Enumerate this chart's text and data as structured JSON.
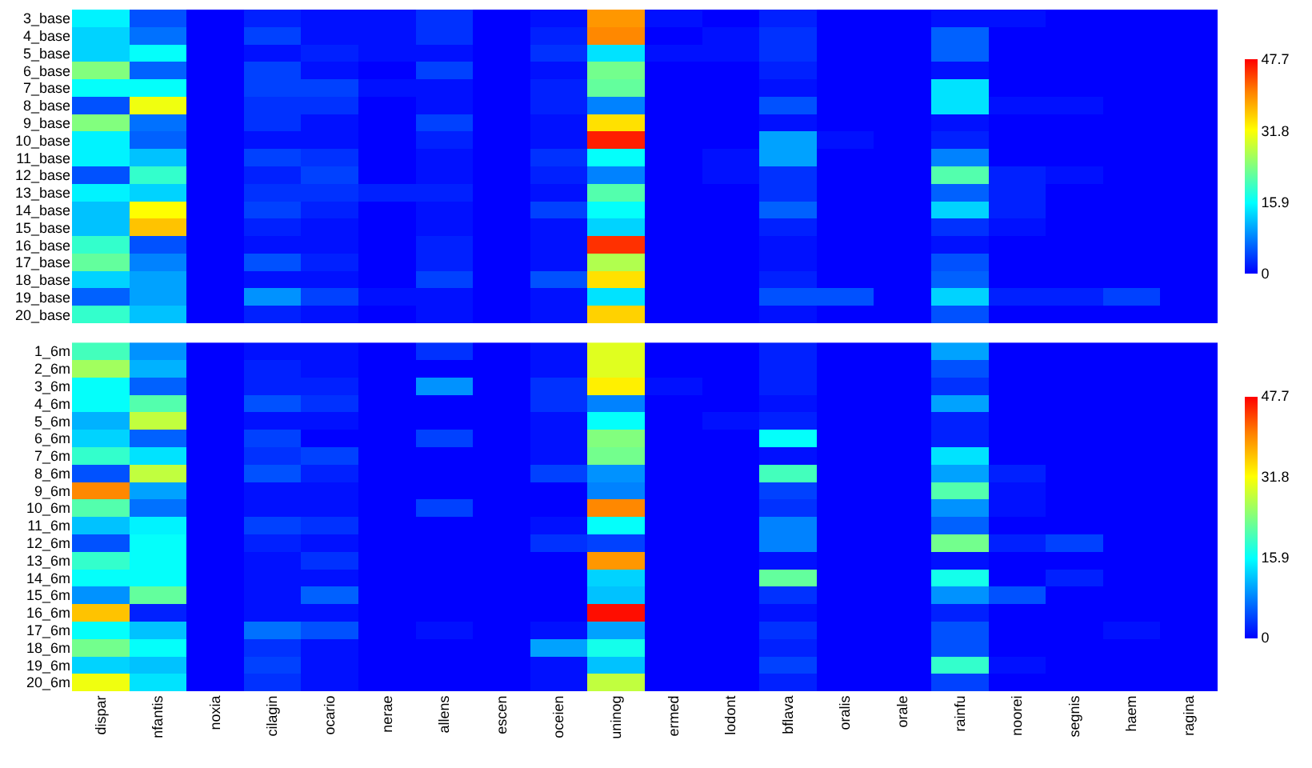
{
  "chart_data": [
    {
      "type": "heatmap",
      "tick_labels": "y",
      "categories": [
        null,
        null,
        null,
        null,
        null,
        null,
        null,
        null,
        null,
        null,
        null,
        null,
        null,
        null,
        null,
        null,
        null,
        null,
        null,
        null
      ],
      "y_categories": [
        "3_base",
        "4_base",
        "5_base",
        "6_base",
        "7_base",
        "8_base",
        "9_base",
        "10_base",
        "11_base",
        "12_base",
        "13_base",
        "14_base",
        "15_base",
        "16_base",
        "17_base",
        "18_base",
        "19_base",
        "20_base"
      ],
      "cells": [
        [
          15,
          5,
          0,
          2,
          1,
          1,
          3,
          0,
          1,
          39,
          1,
          0,
          2,
          0,
          0,
          1,
          1,
          0,
          0,
          0
        ],
        [
          13,
          7,
          0,
          4,
          1,
          1,
          3,
          0,
          2,
          40,
          0,
          1,
          3,
          0,
          0,
          6,
          0,
          0,
          0,
          0
        ],
        [
          13,
          16,
          0,
          1,
          2,
          1,
          1,
          0,
          3,
          14,
          1,
          1,
          3,
          0,
          0,
          6,
          0,
          0,
          0,
          0
        ],
        [
          24,
          6,
          0,
          4,
          1,
          0,
          4,
          0,
          1,
          23,
          0,
          0,
          2,
          0,
          0,
          1,
          0,
          0,
          0,
          0
        ],
        [
          16,
          16,
          0,
          4,
          4,
          1,
          1,
          0,
          2,
          22,
          0,
          0,
          1,
          0,
          0,
          14,
          0,
          0,
          0,
          0
        ],
        [
          5,
          31,
          0,
          3,
          3,
          0,
          1,
          0,
          2,
          8,
          0,
          0,
          5,
          0,
          0,
          14,
          1,
          1,
          0,
          0
        ],
        [
          24,
          7,
          0,
          3,
          1,
          0,
          4,
          0,
          1,
          34,
          0,
          0,
          1,
          0,
          0,
          1,
          0,
          0,
          0,
          0
        ],
        [
          15,
          6,
          0,
          1,
          1,
          0,
          2,
          0,
          1,
          46,
          0,
          0,
          10,
          1,
          0,
          2,
          0,
          0,
          0,
          0
        ],
        [
          15,
          12,
          0,
          4,
          3,
          0,
          1,
          0,
          3,
          16,
          0,
          1,
          10,
          0,
          0,
          8,
          0,
          0,
          0,
          0
        ],
        [
          5,
          19,
          0,
          2,
          4,
          0,
          1,
          0,
          2,
          8,
          0,
          1,
          3,
          0,
          0,
          21,
          2,
          1,
          0,
          0
        ],
        [
          15,
          13,
          0,
          3,
          3,
          2,
          2,
          0,
          1,
          21,
          0,
          0,
          3,
          0,
          0,
          6,
          2,
          0,
          0,
          0
        ],
        [
          12,
          32,
          0,
          4,
          2,
          0,
          1,
          0,
          4,
          16,
          0,
          0,
          6,
          0,
          0,
          13,
          2,
          0,
          0,
          0
        ],
        [
          12,
          36,
          0,
          2,
          1,
          0,
          1,
          0,
          1,
          13,
          0,
          0,
          2,
          0,
          0,
          3,
          1,
          0,
          0,
          0
        ],
        [
          19,
          5,
          0,
          1,
          1,
          0,
          2,
          0,
          1,
          45,
          0,
          0,
          1,
          0,
          0,
          1,
          0,
          0,
          0,
          0
        ],
        [
          22,
          8,
          0,
          5,
          2,
          0,
          2,
          0,
          1,
          27,
          0,
          0,
          1,
          0,
          0,
          5,
          0,
          0,
          0,
          0
        ],
        [
          13,
          10,
          0,
          1,
          1,
          0,
          4,
          0,
          5,
          34,
          0,
          0,
          2,
          0,
          0,
          6,
          0,
          0,
          0,
          0
        ],
        [
          6,
          10,
          0,
          9,
          4,
          1,
          1,
          0,
          1,
          14,
          0,
          0,
          5,
          5,
          0,
          13,
          2,
          2,
          4,
          0
        ],
        [
          19,
          12,
          0,
          2,
          1,
          0,
          1,
          0,
          1,
          35,
          0,
          0,
          1,
          0,
          0,
          5,
          0,
          0,
          0,
          0
        ]
      ],
      "clim": [
        0,
        47.7
      ],
      "cticks": [
        0,
        15.9,
        31.8,
        47.7
      ]
    },
    {
      "type": "heatmap",
      "categories": [
        "dispar",
        "nfantis",
        "noxia",
        "cilagin",
        "ocario",
        "nerae",
        "allens",
        "escen",
        "oceien",
        "uninog",
        "ermed",
        "lodont",
        "bflava",
        "oralis",
        "orale",
        "rainfu",
        "noorei",
        "segnis",
        "haem",
        "ragina"
      ],
      "y_categories": [
        "1_6m",
        "2_6m",
        "3_6m",
        "4_6m",
        "5_6m",
        "6_6m",
        "7_6m",
        "8_6m",
        "9_6m",
        "10_6m",
        "11_6m",
        "12_6m",
        "13_6m",
        "14_6m",
        "15_6m",
        "16_6m",
        "17_6m",
        "18_6m",
        "19_6m",
        "20_6m"
      ],
      "cells": [
        [
          20,
          9,
          0,
          1,
          1,
          0,
          3,
          0,
          1,
          30,
          0,
          0,
          2,
          0,
          0,
          10,
          0,
          0,
          0,
          0
        ],
        [
          26,
          11,
          0,
          2,
          1,
          0,
          0,
          0,
          1,
          30,
          0,
          0,
          2,
          0,
          0,
          5,
          0,
          0,
          0,
          0
        ],
        [
          16,
          6,
          0,
          2,
          2,
          0,
          9,
          0,
          3,
          33,
          1,
          0,
          2,
          0,
          0,
          3,
          0,
          0,
          0,
          0
        ],
        [
          16,
          21,
          0,
          5,
          3,
          0,
          0,
          0,
          3,
          8,
          0,
          0,
          1,
          0,
          0,
          10,
          0,
          0,
          0,
          0
        ],
        [
          11,
          28,
          0,
          1,
          1,
          0,
          0,
          0,
          1,
          16,
          0,
          1,
          2,
          0,
          0,
          2,
          0,
          0,
          0,
          0
        ],
        [
          13,
          6,
          0,
          4,
          0,
          0,
          4,
          0,
          1,
          24,
          0,
          0,
          16,
          0,
          0,
          2,
          0,
          0,
          0,
          0
        ],
        [
          19,
          14,
          0,
          3,
          4,
          0,
          0,
          0,
          1,
          23,
          0,
          0,
          1,
          0,
          0,
          14,
          0,
          0,
          0,
          0
        ],
        [
          5,
          28,
          0,
          5,
          2,
          0,
          0,
          0,
          4,
          9,
          0,
          0,
          20,
          0,
          0,
          10,
          2,
          0,
          0,
          0
        ],
        [
          40,
          10,
          0,
          1,
          1,
          0,
          0,
          0,
          0,
          8,
          0,
          0,
          4,
          0,
          0,
          21,
          1,
          0,
          0,
          0
        ],
        [
          21,
          7,
          0,
          1,
          1,
          0,
          4,
          0,
          0,
          40,
          0,
          0,
          3,
          0,
          0,
          9,
          1,
          0,
          0,
          0
        ],
        [
          12,
          15,
          0,
          4,
          3,
          0,
          0,
          0,
          1,
          16,
          0,
          0,
          8,
          0,
          0,
          6,
          0,
          0,
          0,
          0
        ],
        [
          5,
          16,
          0,
          2,
          1,
          0,
          0,
          0,
          3,
          4,
          0,
          0,
          8,
          0,
          0,
          23,
          2,
          4,
          0,
          0
        ],
        [
          19,
          16,
          0,
          1,
          3,
          0,
          0,
          0,
          0,
          39,
          0,
          0,
          1,
          0,
          0,
          1,
          0,
          0,
          0,
          0
        ],
        [
          16,
          16,
          0,
          1,
          1,
          0,
          0,
          0,
          0,
          13,
          0,
          0,
          22,
          0,
          0,
          17,
          0,
          2,
          0,
          0
        ],
        [
          9,
          22,
          0,
          1,
          6,
          0,
          0,
          0,
          0,
          12,
          0,
          0,
          3,
          0,
          0,
          9,
          5,
          0,
          0,
          0
        ],
        [
          36,
          2,
          0,
          1,
          1,
          0,
          0,
          0,
          0,
          47,
          0,
          0,
          1,
          0,
          0,
          2,
          0,
          0,
          0,
          0
        ],
        [
          16,
          12,
          0,
          7,
          5,
          0,
          1,
          0,
          1,
          10,
          0,
          0,
          3,
          0,
          0,
          5,
          0,
          0,
          1,
          0
        ],
        [
          23,
          16,
          0,
          3,
          1,
          0,
          0,
          0,
          10,
          17,
          0,
          0,
          2,
          0,
          0,
          5,
          0,
          0,
          0,
          0
        ],
        [
          13,
          12,
          0,
          4,
          1,
          0,
          0,
          0,
          1,
          12,
          0,
          0,
          4,
          0,
          0,
          19,
          1,
          0,
          0,
          0
        ],
        [
          31,
          14,
          0,
          3,
          1,
          0,
          0,
          0,
          1,
          28,
          0,
          0,
          2,
          0,
          0,
          4,
          0,
          0,
          0,
          0
        ]
      ],
      "clim": [
        0,
        47.7
      ],
      "cticks": [
        0,
        15.9,
        31.8,
        47.7
      ]
    }
  ]
}
